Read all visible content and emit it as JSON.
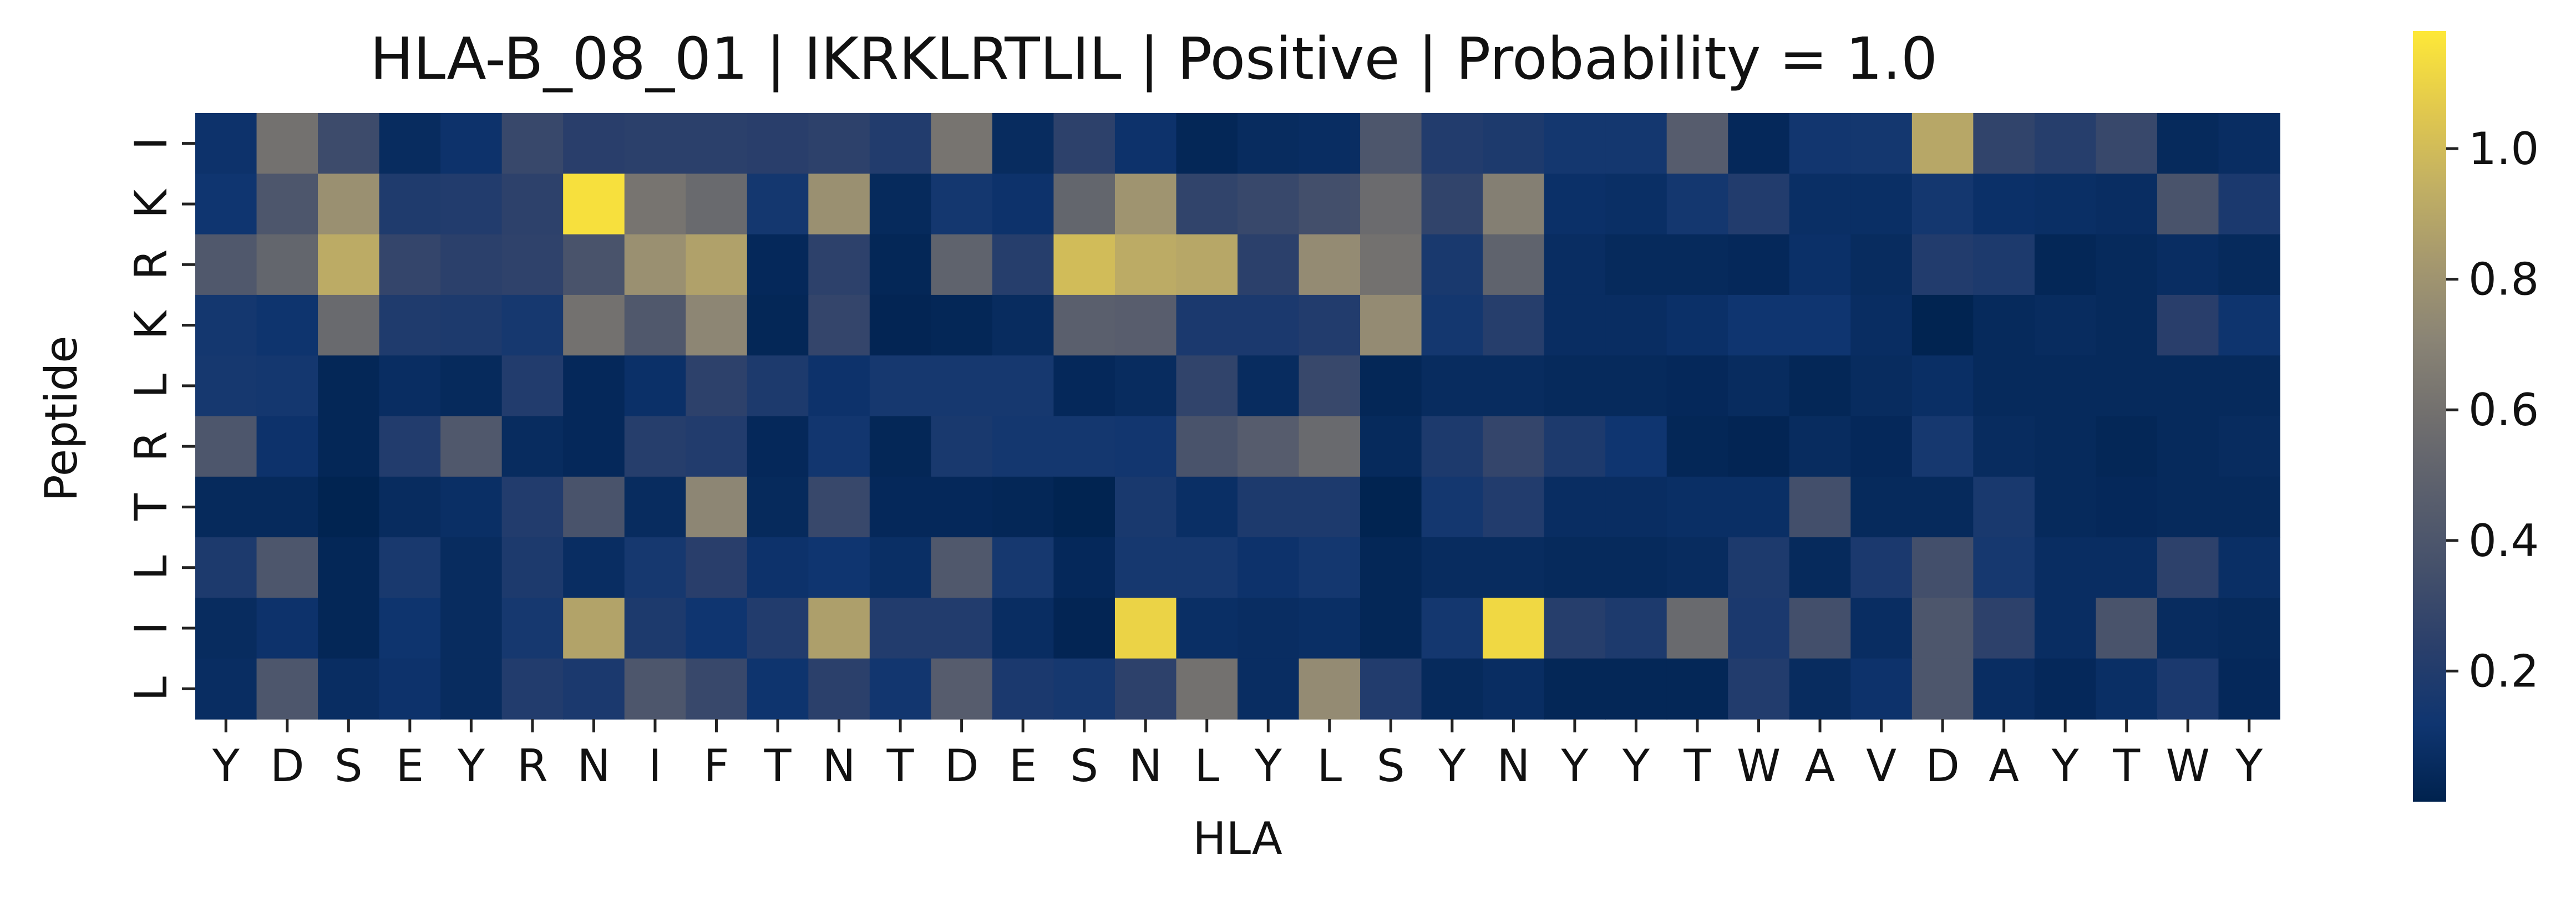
{
  "chart_data": {
    "type": "heatmap",
    "title": "HLA-B_08_01 | IKRKLRTLIL | Positive | Probability = 1.0",
    "xlabel": "HLA",
    "ylabel": "Peptide",
    "x_labels": [
      "Y",
      "D",
      "S",
      "E",
      "Y",
      "R",
      "N",
      "I",
      "F",
      "T",
      "N",
      "T",
      "D",
      "E",
      "S",
      "N",
      "L",
      "Y",
      "L",
      "S",
      "Y",
      "N",
      "Y",
      "Y",
      "T",
      "W",
      "A",
      "V",
      "D",
      "A",
      "Y",
      "T",
      "W",
      "Y"
    ],
    "y_labels": [
      "I",
      "K",
      "R",
      "K",
      "L",
      "R",
      "T",
      "L",
      "I",
      "L"
    ],
    "colormap": "cividis",
    "vmin": 0.0,
    "vmax": 1.18,
    "colorbar_ticks": [
      "0.2",
      "0.4",
      "0.6",
      "0.8",
      "1.0"
    ],
    "colorbar_tick_values": [
      0.2,
      0.4,
      0.6,
      0.8,
      1.0
    ],
    "values": [
      [
        0.1,
        0.6,
        0.32,
        0.06,
        0.1,
        0.3,
        0.23,
        0.24,
        0.24,
        0.23,
        0.25,
        0.2,
        0.62,
        0.06,
        0.25,
        0.1,
        0.03,
        0.06,
        0.07,
        0.4,
        0.2,
        0.18,
        0.14,
        0.14,
        0.45,
        0.04,
        0.13,
        0.14,
        0.9,
        0.27,
        0.22,
        0.3,
        0.05,
        0.07
      ],
      [
        0.12,
        0.4,
        0.78,
        0.19,
        0.2,
        0.25,
        1.15,
        0.62,
        0.55,
        0.14,
        0.78,
        0.05,
        0.14,
        0.1,
        0.52,
        0.8,
        0.27,
        0.3,
        0.35,
        0.56,
        0.27,
        0.68,
        0.09,
        0.08,
        0.14,
        0.2,
        0.08,
        0.08,
        0.14,
        0.09,
        0.08,
        0.07,
        0.38,
        0.17
      ],
      [
        0.42,
        0.52,
        0.92,
        0.28,
        0.24,
        0.26,
        0.38,
        0.78,
        0.87,
        0.04,
        0.25,
        0.03,
        0.5,
        0.22,
        1.0,
        0.92,
        0.9,
        0.24,
        0.75,
        0.6,
        0.16,
        0.5,
        0.07,
        0.05,
        0.05,
        0.04,
        0.09,
        0.06,
        0.2,
        0.18,
        0.03,
        0.05,
        0.07,
        0.05
      ],
      [
        0.14,
        0.11,
        0.55,
        0.19,
        0.18,
        0.15,
        0.6,
        0.42,
        0.72,
        0.03,
        0.28,
        0.02,
        0.03,
        0.06,
        0.47,
        0.46,
        0.17,
        0.17,
        0.2,
        0.75,
        0.14,
        0.22,
        0.07,
        0.07,
        0.09,
        0.12,
        0.12,
        0.07,
        0.01,
        0.05,
        0.06,
        0.05,
        0.23,
        0.11
      ],
      [
        0.15,
        0.14,
        0.03,
        0.07,
        0.05,
        0.2,
        0.04,
        0.09,
        0.25,
        0.18,
        0.1,
        0.15,
        0.15,
        0.15,
        0.04,
        0.06,
        0.27,
        0.06,
        0.3,
        0.03,
        0.06,
        0.06,
        0.05,
        0.05,
        0.04,
        0.06,
        0.03,
        0.06,
        0.08,
        0.05,
        0.05,
        0.05,
        0.05,
        0.05
      ],
      [
        0.4,
        0.1,
        0.03,
        0.2,
        0.42,
        0.06,
        0.04,
        0.22,
        0.2,
        0.04,
        0.13,
        0.03,
        0.16,
        0.14,
        0.14,
        0.13,
        0.38,
        0.45,
        0.55,
        0.05,
        0.18,
        0.28,
        0.18,
        0.12,
        0.03,
        0.02,
        0.06,
        0.04,
        0.15,
        0.06,
        0.05,
        0.03,
        0.05,
        0.06
      ],
      [
        0.05,
        0.05,
        0.01,
        0.06,
        0.08,
        0.2,
        0.38,
        0.06,
        0.72,
        0.05,
        0.3,
        0.04,
        0.04,
        0.03,
        0.01,
        0.16,
        0.08,
        0.18,
        0.18,
        0.01,
        0.14,
        0.2,
        0.07,
        0.07,
        0.08,
        0.08,
        0.35,
        0.05,
        0.05,
        0.16,
        0.05,
        0.04,
        0.05,
        0.05
      ],
      [
        0.18,
        0.4,
        0.03,
        0.16,
        0.06,
        0.18,
        0.07,
        0.15,
        0.23,
        0.1,
        0.12,
        0.08,
        0.42,
        0.15,
        0.04,
        0.15,
        0.15,
        0.1,
        0.14,
        0.03,
        0.06,
        0.06,
        0.05,
        0.05,
        0.06,
        0.18,
        0.05,
        0.17,
        0.35,
        0.15,
        0.07,
        0.07,
        0.25,
        0.08
      ],
      [
        0.06,
        0.1,
        0.03,
        0.11,
        0.06,
        0.15,
        0.88,
        0.18,
        0.12,
        0.2,
        0.86,
        0.2,
        0.2,
        0.07,
        0.02,
        1.1,
        0.08,
        0.07,
        0.08,
        0.03,
        0.14,
        1.12,
        0.22,
        0.18,
        0.55,
        0.17,
        0.35,
        0.07,
        0.4,
        0.25,
        0.07,
        0.38,
        0.06,
        0.05
      ],
      [
        0.07,
        0.4,
        0.07,
        0.1,
        0.06,
        0.2,
        0.17,
        0.4,
        0.3,
        0.11,
        0.24,
        0.13,
        0.45,
        0.17,
        0.15,
        0.25,
        0.6,
        0.07,
        0.75,
        0.2,
        0.05,
        0.07,
        0.03,
        0.03,
        0.03,
        0.2,
        0.06,
        0.1,
        0.4,
        0.07,
        0.04,
        0.08,
        0.17,
        0.04
      ]
    ]
  }
}
